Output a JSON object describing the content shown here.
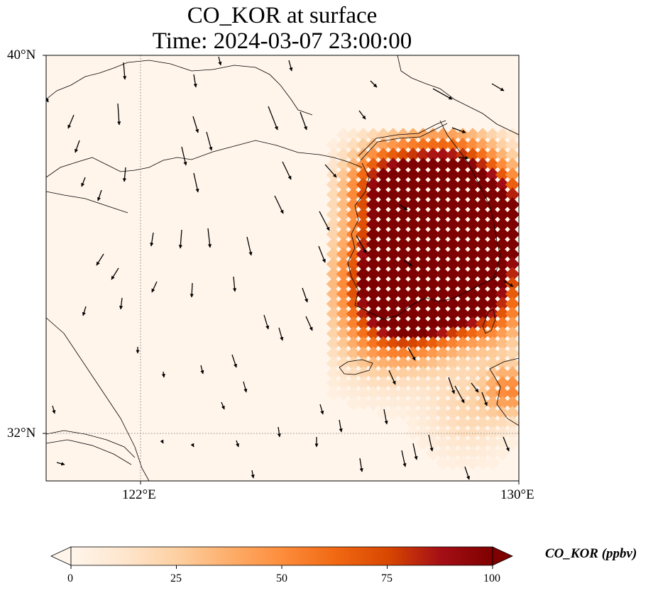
{
  "title": {
    "line1": "CO_KOR at surface",
    "line2": "Time: 2024-03-07 23:00:00"
  },
  "axes": {
    "lat_labels": [
      "40°N",
      "32°N"
    ],
    "lon_labels": [
      "122°E",
      "130°E"
    ],
    "lat_values": [
      40,
      32
    ],
    "lon_values": [
      122,
      130
    ],
    "extent": {
      "lon_min": 120,
      "lon_max": 130,
      "lat_min": 31,
      "lat_max": 40
    },
    "gridlines": "dotted"
  },
  "colorbar": {
    "label": "CO_KOR (ppbv)",
    "ticks": [
      "0",
      "25",
      "50",
      "75",
      "100"
    ],
    "tick_values": [
      0,
      25,
      50,
      75,
      100
    ],
    "min": 0,
    "max": 100,
    "extend": "both",
    "colormap": [
      "#fff5eb",
      "#fee6ce",
      "#fdd0a2",
      "#fdae6b",
      "#fd8d3c",
      "#f16913",
      "#d94801",
      "#a50f15",
      "#7f0000"
    ]
  },
  "colors": {
    "background": "#fff5eb",
    "high": "#7f0000",
    "coastline": "#000000"
  }
}
